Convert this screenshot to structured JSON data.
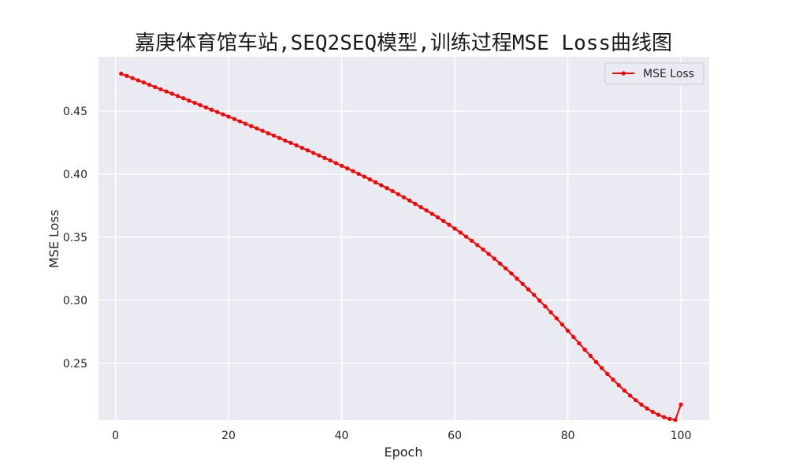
{
  "chart_data": {
    "type": "line",
    "title": "嘉庚体育馆车站,SEQ2SEQ模型,训练过程MSE Loss曲线图",
    "xlabel": "Epoch",
    "ylabel": "MSE Loss",
    "xlim": [
      -3,
      105
    ],
    "ylim": [
      0.205,
      0.493
    ],
    "xticks": [
      0,
      20,
      40,
      60,
      80,
      100
    ],
    "xtick_labels": [
      "0",
      "20",
      "40",
      "60",
      "80",
      "100"
    ],
    "yticks": [
      0.25,
      0.3,
      0.35,
      0.4,
      0.45
    ],
    "ytick_labels": [
      "0.25",
      "0.30",
      "0.35",
      "0.40",
      "0.45"
    ],
    "grid": true,
    "legend": {
      "position": "top-right"
    },
    "colors": {
      "series": "#ff0000",
      "plot_bg": "#eaeaf2",
      "grid": "#ffffff"
    },
    "series": [
      {
        "name": "MSE Loss",
        "marker": "circle",
        "x": [
          1,
          2,
          3,
          4,
          5,
          6,
          7,
          8,
          9,
          10,
          11,
          12,
          13,
          14,
          15,
          16,
          17,
          18,
          19,
          20,
          21,
          22,
          23,
          24,
          25,
          26,
          27,
          28,
          29,
          30,
          31,
          32,
          33,
          34,
          35,
          36,
          37,
          38,
          39,
          40,
          41,
          42,
          43,
          44,
          45,
          46,
          47,
          48,
          49,
          50,
          51,
          52,
          53,
          54,
          55,
          56,
          57,
          58,
          59,
          60,
          61,
          62,
          63,
          64,
          65,
          66,
          67,
          68,
          69,
          70,
          71,
          72,
          73,
          74,
          75,
          76,
          77,
          78,
          79,
          80,
          81,
          82,
          83,
          84,
          85,
          86,
          87,
          88,
          89,
          90,
          91,
          92,
          93,
          94,
          95,
          96,
          97,
          98,
          99,
          100
        ],
        "values": [
          0.4796,
          0.4778,
          0.4761,
          0.4743,
          0.4726,
          0.4708,
          0.469,
          0.4672,
          0.4655,
          0.4637,
          0.4619,
          0.4601,
          0.4583,
          0.4565,
          0.4547,
          0.4529,
          0.451,
          0.4492,
          0.4474,
          0.4455,
          0.4437,
          0.4418,
          0.4399,
          0.4381,
          0.4362,
          0.4343,
          0.4324,
          0.4305,
          0.4286,
          0.4266,
          0.4247,
          0.4228,
          0.4208,
          0.4188,
          0.4168,
          0.4148,
          0.4128,
          0.4108,
          0.4087,
          0.4066,
          0.4045,
          0.4024,
          0.4002,
          0.398,
          0.3958,
          0.3935,
          0.3912,
          0.3889,
          0.3865,
          0.3841,
          0.3816,
          0.3791,
          0.3765,
          0.3739,
          0.3712,
          0.3685,
          0.3657,
          0.3628,
          0.3598,
          0.3568,
          0.3537,
          0.3505,
          0.3472,
          0.3438,
          0.3403,
          0.3367,
          0.333,
          0.3292,
          0.3253,
          0.3213,
          0.3172,
          0.313,
          0.3087,
          0.3043,
          0.2998,
          0.2952,
          0.2905,
          0.2857,
          0.2808,
          0.2759,
          0.2709,
          0.2659,
          0.2609,
          0.256,
          0.2511,
          0.2463,
          0.2416,
          0.2371,
          0.2327,
          0.2285,
          0.2245,
          0.2208,
          0.2174,
          0.2143,
          0.2116,
          0.2093,
          0.2074,
          0.206,
          0.2052,
          0.2174
        ]
      }
    ]
  }
}
